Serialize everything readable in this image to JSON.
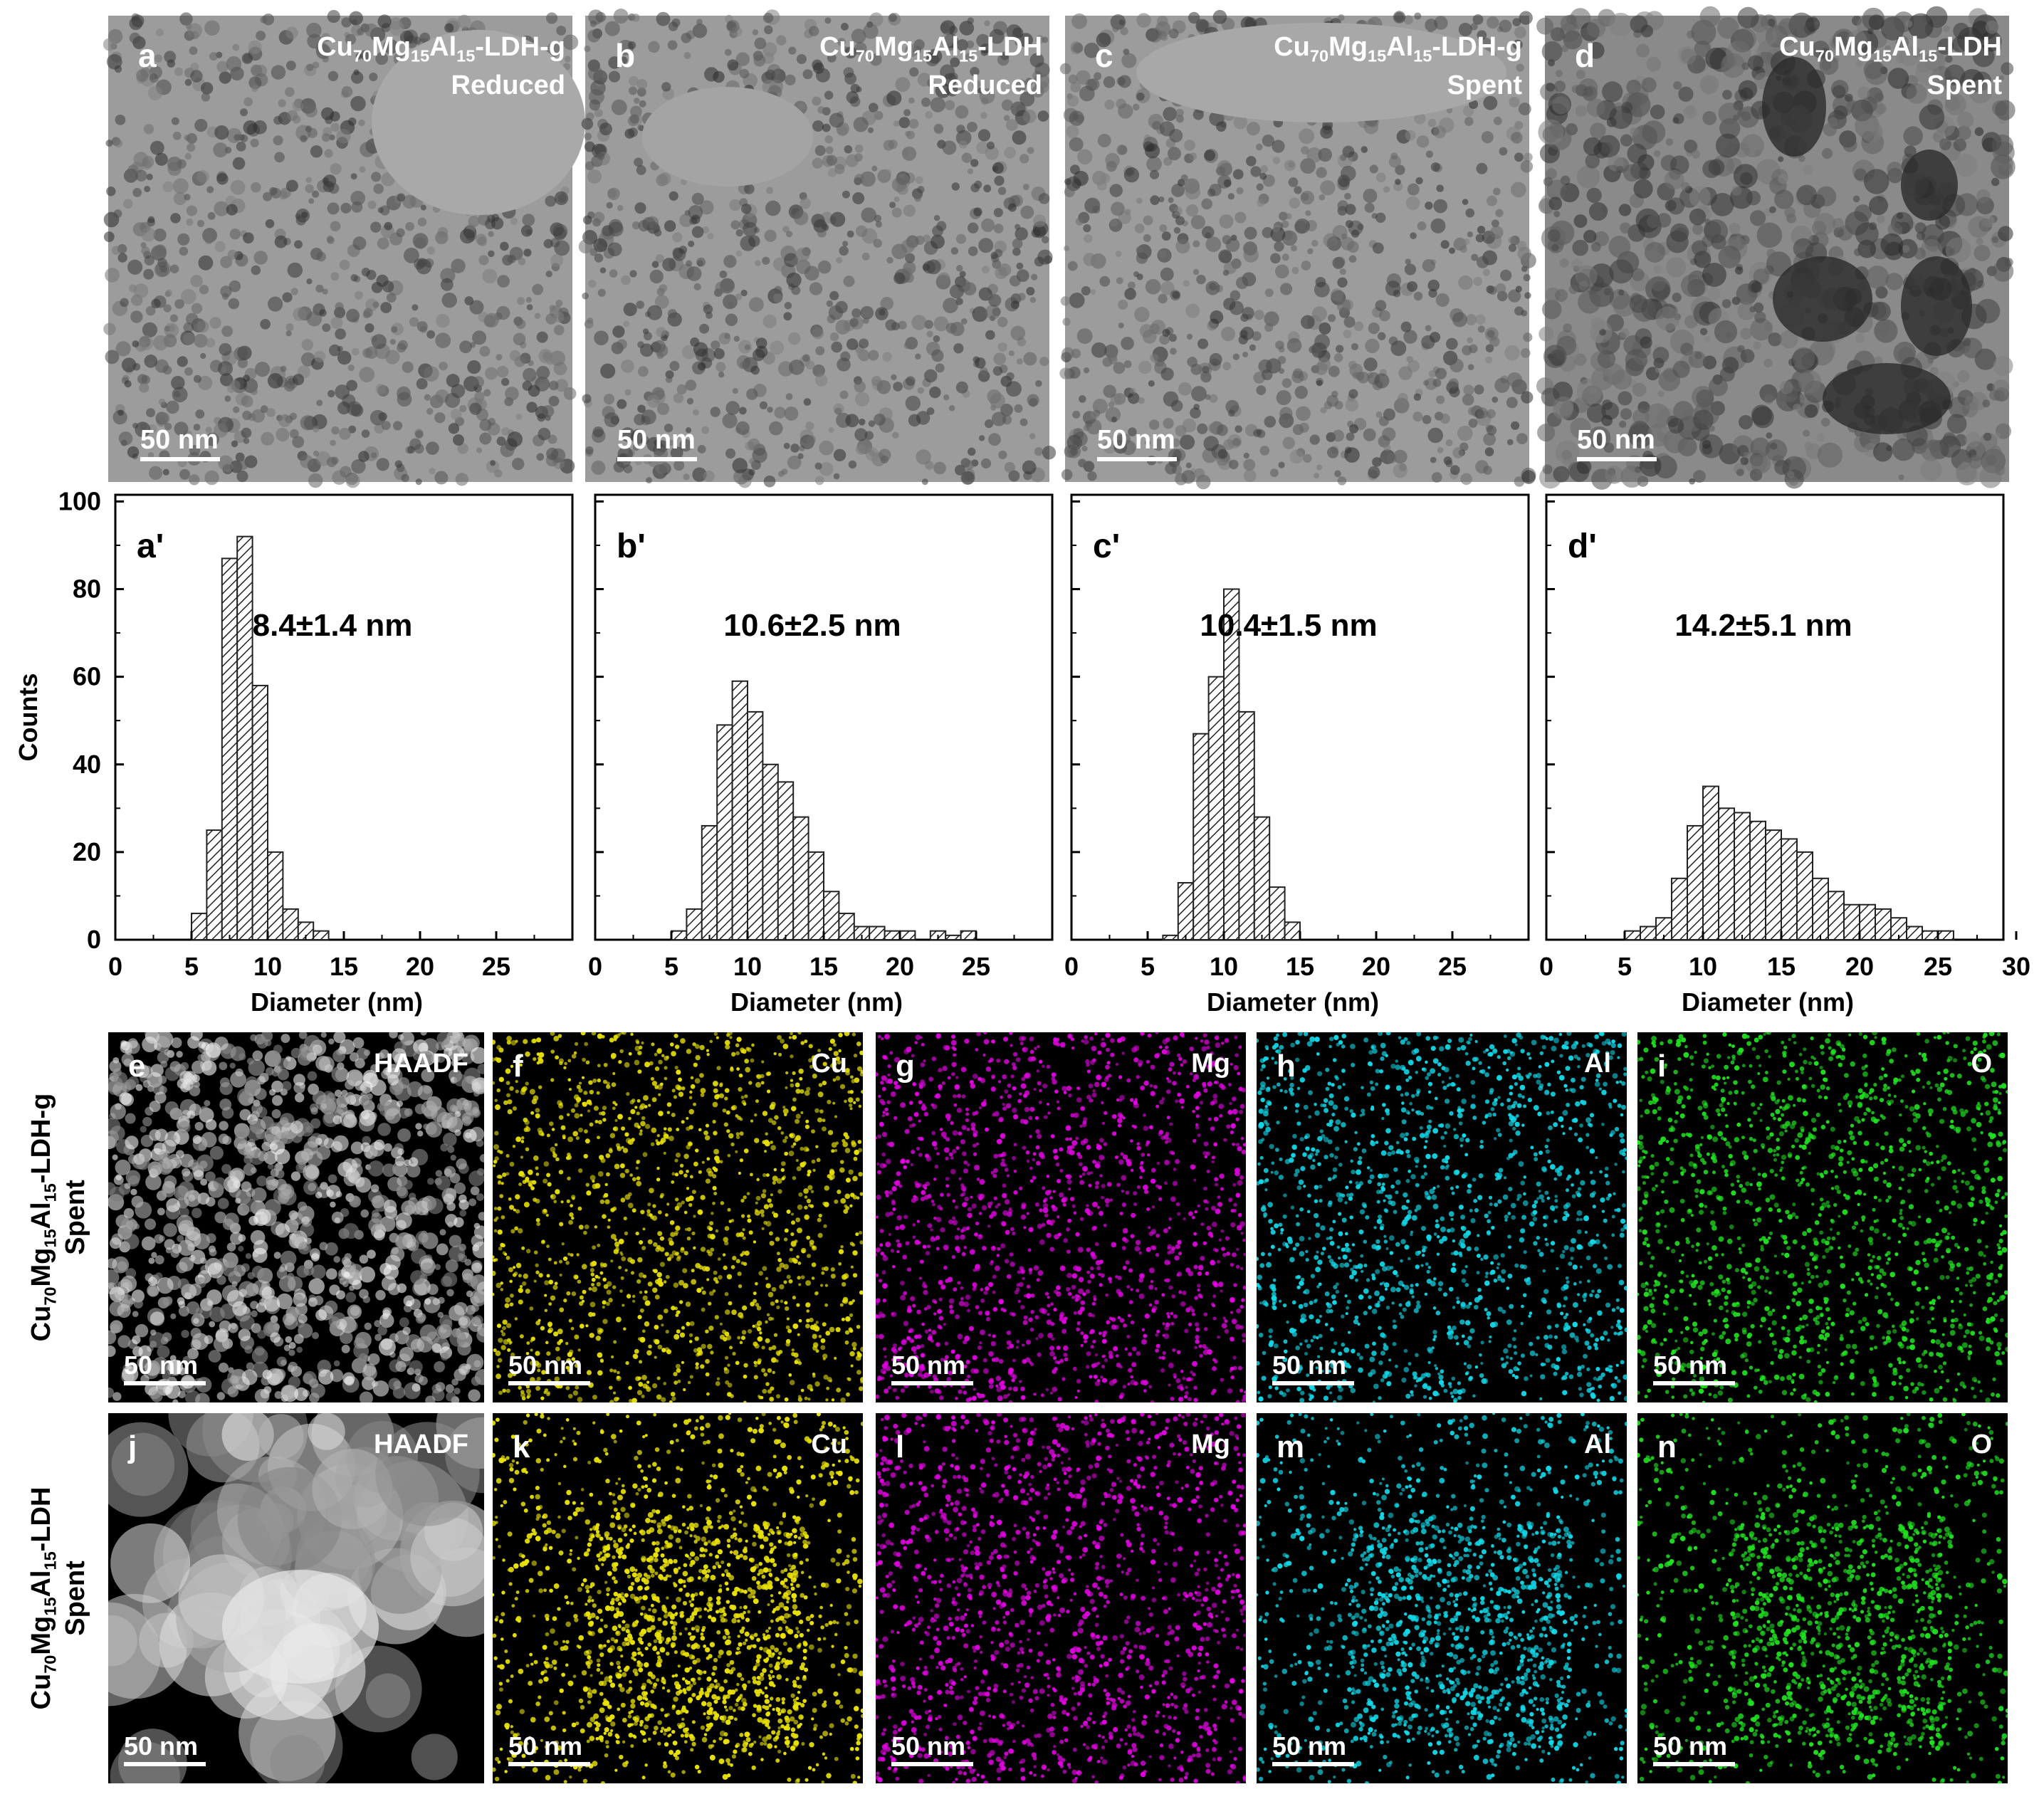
{
  "tem_panels": [
    {
      "letter": "a",
      "title": "Cu70Mg15Al15-LDH-g",
      "sample": "Cu",
      "sub1": "70",
      "el2": "Mg",
      "sub2": "15",
      "el3": "Al",
      "sub3": "15",
      "suffix": "-LDH-g",
      "state": "Reduced",
      "scalebar": "50 nm"
    },
    {
      "letter": "b",
      "title": "Cu70Mg15Al15-LDH",
      "sample": "Cu",
      "sub1": "70",
      "el2": "Mg",
      "sub2": "15",
      "el3": "Al",
      "sub3": "15",
      "suffix": "-LDH",
      "state": "Reduced",
      "scalebar": "50 nm"
    },
    {
      "letter": "c",
      "title": "Cu70Mg15Al15-LDH-g",
      "sample": "Cu",
      "sub1": "70",
      "el2": "Mg",
      "sub2": "15",
      "el3": "Al",
      "sub3": "15",
      "suffix": "-LDH-g",
      "state": "Spent",
      "scalebar": "50 nm"
    },
    {
      "letter": "d",
      "title": "Cu70Mg15Al15-LDH",
      "sample": "Cu",
      "sub1": "70",
      "el2": "Mg",
      "sub2": "15",
      "el3": "Al",
      "sub3": "15",
      "suffix": "-LDH",
      "state": "Spent",
      "scalebar": "50 nm"
    }
  ],
  "chart_data": [
    {
      "type": "bar",
      "label": "a'",
      "annotation": "8.4±1.4 nm",
      "bin_width": 1,
      "x": [
        5.5,
        6.5,
        7.5,
        8.5,
        9.5,
        10.5,
        11.5,
        12.5,
        13.5
      ],
      "values": [
        6,
        25,
        87,
        92,
        58,
        20,
        7,
        4,
        2
      ],
      "xlim": [
        0,
        30
      ],
      "ylim": [
        0,
        100
      ],
      "xticks": [
        0,
        5,
        10,
        15,
        20,
        25
      ],
      "ylabel": "Counts",
      "xlabel": "Diameter (nm)"
    },
    {
      "type": "bar",
      "label": "b'",
      "annotation": "10.6±2.5 nm",
      "bin_width": 1,
      "x": [
        5.5,
        6.5,
        7.5,
        8.5,
        9.5,
        10.5,
        11.5,
        12.5,
        13.5,
        14.5,
        15.5,
        16.5,
        17.5,
        18.5,
        19.5,
        20.5,
        21.5,
        22.5,
        23.5,
        24.5
      ],
      "values": [
        2,
        7,
        26,
        49,
        59,
        52,
        40,
        36,
        28,
        20,
        11,
        6,
        3,
        3,
        2,
        2,
        0,
        2,
        1,
        2
      ],
      "xlim": [
        0,
        30
      ],
      "ylim": [
        0,
        100
      ],
      "xticks": [
        0,
        5,
        10,
        15,
        20,
        25
      ],
      "xlabel": "Diameter (nm)"
    },
    {
      "type": "bar",
      "label": "c'",
      "annotation": "10.4±1.5 nm",
      "bin_width": 1,
      "x": [
        6.5,
        7.5,
        8.5,
        9.5,
        10.5,
        11.5,
        12.5,
        13.5,
        14.5
      ],
      "values": [
        1,
        13,
        47,
        60,
        80,
        52,
        28,
        12,
        4
      ],
      "xlim": [
        0,
        30
      ],
      "ylim": [
        0,
        100
      ],
      "xticks": [
        0,
        5,
        10,
        15,
        20,
        25
      ],
      "xlabel": "Diameter (nm)"
    },
    {
      "type": "bar",
      "label": "d'",
      "annotation": "14.2±5.1 nm",
      "bin_width": 1,
      "x": [
        5.5,
        6.5,
        7.5,
        8.5,
        9.5,
        10.5,
        11.5,
        12.5,
        13.5,
        14.5,
        15.5,
        16.5,
        17.5,
        18.5,
        19.5,
        20.5,
        21.5,
        22.5,
        23.5,
        24.5,
        25.5
      ],
      "values": [
        2,
        3,
        5,
        14,
        26,
        35,
        30,
        29,
        27,
        25,
        23,
        20,
        14,
        11,
        8,
        8,
        7,
        5,
        3,
        2,
        2
      ],
      "xlim": [
        0,
        30
      ],
      "ylim": [
        0,
        100
      ],
      "xticks": [
        0,
        5,
        10,
        15,
        20,
        25,
        30
      ],
      "xlabel": "Diameter (nm)"
    }
  ],
  "y_axis": {
    "ticks": [
      0,
      20,
      40,
      60,
      80,
      100
    ]
  },
  "eds_rows": [
    {
      "row_label_line1": "Cu70Mg15Al15-LDH-g",
      "lab_el1": "Cu",
      "lab_sub1": "70",
      "lab_el2": "Mg",
      "lab_sub2": "15",
      "lab_el3": "Al",
      "lab_sub3": "15",
      "lab_suffix": "-LDH-g",
      "row_label_line2": "Spent",
      "panels": [
        {
          "letter": "e",
          "element": "HAADF",
          "color": "#ffffff",
          "scalebar": "50 nm"
        },
        {
          "letter": "f",
          "element": "Cu",
          "color": "#e8e000",
          "scalebar": "50 nm"
        },
        {
          "letter": "g",
          "element": "Mg",
          "color": "#e000e0",
          "scalebar": "50 nm"
        },
        {
          "letter": "h",
          "element": "Al",
          "color": "#10d8e8",
          "scalebar": "50 nm"
        },
        {
          "letter": "i",
          "element": "O",
          "color": "#20e020",
          "scalebar": "50 nm"
        }
      ]
    },
    {
      "row_label_line1": "Cu70Mg15Al15-LDH",
      "lab_el1": "Cu",
      "lab_sub1": "70",
      "lab_el2": "Mg",
      "lab_sub2": "15",
      "lab_el3": "Al",
      "lab_sub3": "15",
      "lab_suffix": "-LDH",
      "row_label_line2": "Spent",
      "panels": [
        {
          "letter": "j",
          "element": "HAADF",
          "color": "#ffffff",
          "scalebar": "50 nm"
        },
        {
          "letter": "k",
          "element": "Cu",
          "color": "#e8e000",
          "scalebar": "50 nm"
        },
        {
          "letter": "l",
          "element": "Mg",
          "color": "#e000e0",
          "scalebar": "50 nm"
        },
        {
          "letter": "m",
          "element": "Al",
          "color": "#10d8e8",
          "scalebar": "50 nm"
        },
        {
          "letter": "n",
          "element": "O",
          "color": "#20e020",
          "scalebar": "50 nm"
        }
      ]
    }
  ]
}
